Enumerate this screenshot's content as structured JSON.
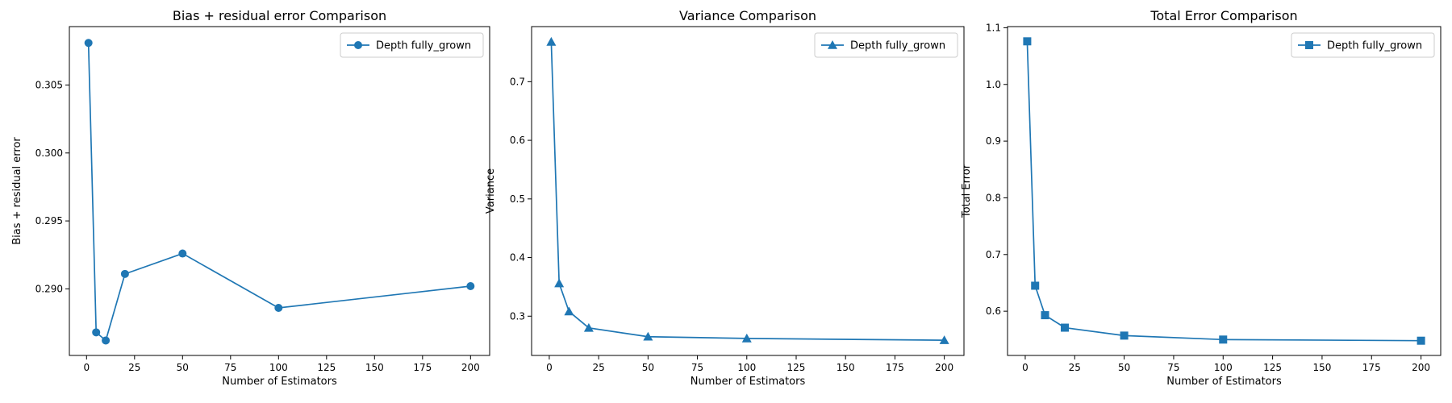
{
  "line_color": "#1f77b4",
  "chart_data": [
    {
      "type": "line",
      "title": "Bias + residual error Comparison",
      "xlabel": "Number of Estimators",
      "ylabel": "Bias + residual error",
      "xlim": [
        -8.95,
        209.95
      ],
      "ylim": [
        0.2851,
        0.3093
      ],
      "xticks": [
        0,
        25,
        50,
        75,
        100,
        125,
        150,
        175,
        200
      ],
      "xtick_labels": [
        "0",
        "25",
        "50",
        "75",
        "100",
        "125",
        "150",
        "175",
        "200"
      ],
      "yticks": [
        0.29,
        0.295,
        0.3,
        0.305
      ],
      "ytick_labels": [
        "0.290",
        "0.295",
        "0.300",
        "0.305"
      ],
      "grid": false,
      "legend_position": "top-right",
      "series": [
        {
          "name": "Depth fully_grown",
          "marker": "circle",
          "x": [
            1,
            5,
            10,
            20,
            50,
            100,
            200
          ],
          "y": [
            0.3081,
            0.2868,
            0.2862,
            0.2911,
            0.2926,
            0.2886,
            0.2902
          ]
        }
      ]
    },
    {
      "type": "line",
      "title": "Variance Comparison",
      "xlabel": "Number of Estimators",
      "ylabel": "Variance",
      "xlim": [
        -8.95,
        209.95
      ],
      "ylim": [
        0.233,
        0.794
      ],
      "xticks": [
        0,
        25,
        50,
        75,
        100,
        125,
        150,
        175,
        200
      ],
      "xtick_labels": [
        "0",
        "25",
        "50",
        "75",
        "100",
        "125",
        "150",
        "175",
        "200"
      ],
      "yticks": [
        0.3,
        0.4,
        0.5,
        0.6,
        0.7
      ],
      "ytick_labels": [
        "0.3",
        "0.4",
        "0.5",
        "0.6",
        "0.7"
      ],
      "grid": false,
      "legend_position": "top-right",
      "series": [
        {
          "name": "Depth fully_grown",
          "marker": "triangle",
          "x": [
            1,
            5,
            10,
            20,
            50,
            100,
            200
          ],
          "y": [
            0.768,
            0.356,
            0.308,
            0.28,
            0.265,
            0.262,
            0.259
          ]
        }
      ]
    },
    {
      "type": "line",
      "title": "Total Error Comparison",
      "xlabel": "Number of Estimators",
      "ylabel": "Total Error",
      "xlim": [
        -8.95,
        209.95
      ],
      "ylim": [
        0.522,
        1.102
      ],
      "xticks": [
        0,
        25,
        50,
        75,
        100,
        125,
        150,
        175,
        200
      ],
      "xtick_labels": [
        "0",
        "25",
        "50",
        "75",
        "100",
        "125",
        "150",
        "175",
        "200"
      ],
      "yticks": [
        0.6,
        0.7,
        0.8,
        0.9,
        1.0,
        1.1
      ],
      "ytick_labels": [
        "0.6",
        "0.7",
        "0.8",
        "0.9",
        "1.0",
        "1.1"
      ],
      "grid": false,
      "legend_position": "top-right",
      "series": [
        {
          "name": "Depth fully_grown",
          "marker": "square",
          "x": [
            1,
            5,
            10,
            20,
            50,
            100,
            200
          ],
          "y": [
            1.076,
            0.645,
            0.593,
            0.571,
            0.557,
            0.55,
            0.548
          ]
        }
      ]
    }
  ]
}
